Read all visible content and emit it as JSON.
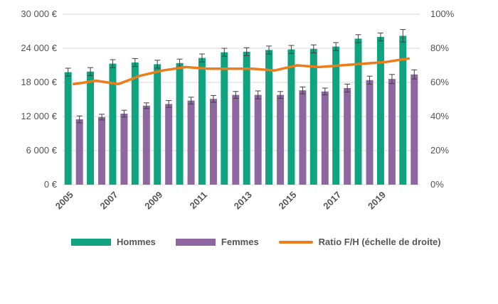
{
  "chart_data": {
    "type": "bar",
    "x": [
      2005,
      2006,
      2007,
      2008,
      2009,
      2010,
      2011,
      2012,
      2013,
      2014,
      2015,
      2016,
      2017,
      2018,
      2019,
      2020
    ],
    "xtick_labels": [
      "2005",
      "2007",
      "2009",
      "2011",
      "2013",
      "2015",
      "2017",
      "2019"
    ],
    "series": [
      {
        "name": "Hommes",
        "kind": "bar",
        "axis": "left",
        "color": "#10a37f",
        "values": [
          19800,
          19900,
          21300,
          21500,
          21200,
          21400,
          22300,
          23300,
          23400,
          23700,
          23800,
          23900,
          24300,
          25700,
          26000,
          26200
        ],
        "error": [
          700,
          700,
          700,
          700,
          700,
          700,
          700,
          700,
          700,
          700,
          700,
          700,
          700,
          700,
          700,
          1100
        ]
      },
      {
        "name": "Femmes",
        "kind": "bar",
        "axis": "left",
        "color": "#8e67a0",
        "values": [
          11500,
          11900,
          12500,
          13900,
          14200,
          14800,
          15100,
          15800,
          15800,
          15800,
          16600,
          16400,
          17000,
          18400,
          18600,
          19400
        ],
        "error": [
          600,
          500,
          600,
          500,
          600,
          600,
          600,
          600,
          700,
          600,
          600,
          600,
          700,
          700,
          800,
          800
        ]
      },
      {
        "name": "Ratio F/H (échelle de droite)",
        "kind": "line",
        "axis": "right",
        "color": "#ed7d1a",
        "values": [
          59,
          61,
          59,
          64,
          67,
          69,
          68,
          68,
          68,
          67,
          70,
          69,
          70,
          71,
          72,
          74
        ]
      }
    ],
    "y_left": {
      "ylim": [
        0,
        30000
      ],
      "ticks": [
        0,
        6000,
        12000,
        18000,
        24000,
        30000
      ],
      "tick_labels": [
        "0 €",
        "6 000 €",
        "12 000 €",
        "18 000 €",
        "24 000 €",
        "30 000 €"
      ]
    },
    "y_right": {
      "ylim": [
        0,
        100
      ],
      "ticks": [
        0,
        20,
        40,
        60,
        80,
        100
      ],
      "tick_labels": [
        "0%",
        "20%",
        "40%",
        "60%",
        "80%",
        "100%"
      ]
    },
    "grid": true,
    "legend_position": "bottom"
  },
  "legend": {
    "hommes": "Hommes",
    "femmes": "Femmes",
    "ratio": "Ratio F/H (échelle de droite)"
  },
  "colors": {
    "hommes": "#10a37f",
    "femmes": "#8e67a0",
    "ratio": "#ed7d1a",
    "grid": "#d9d9d9",
    "error": "#404040"
  }
}
